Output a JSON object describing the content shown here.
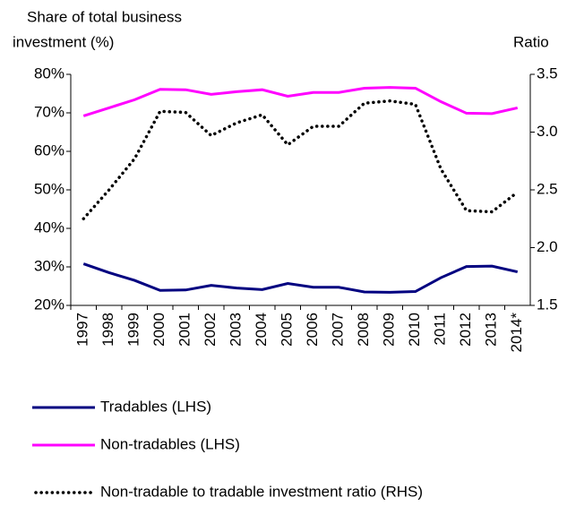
{
  "chart_data": {
    "type": "line",
    "y_label": [
      "Share of total business",
      "investment (%)"
    ],
    "y2_label": "Ratio",
    "categories": [
      "1997",
      "1998",
      "1999",
      "2000",
      "2001",
      "2002",
      "2003",
      "2004",
      "2005",
      "2006",
      "2007",
      "2008",
      "2009",
      "2010",
      "2011",
      "2012",
      "2013",
      "2014*"
    ],
    "series": [
      {
        "name": "Tradables (LHS)",
        "color": "#000080",
        "style": "solid",
        "values": [
          30.8,
          28.5,
          26.5,
          23.9,
          24.0,
          25.2,
          24.5,
          24.1,
          25.7,
          24.7,
          24.7,
          23.5,
          23.4,
          23.6,
          27.2,
          30.1,
          30.2,
          28.7
        ]
      },
      {
        "name": "Non-tradables (LHS)",
        "color": "#ff00ff",
        "style": "solid",
        "values": [
          69.2,
          71.3,
          73.4,
          76.1,
          76.0,
          74.8,
          75.5,
          76.0,
          74.3,
          75.3,
          75.3,
          76.4,
          76.6,
          76.4,
          72.9,
          69.9,
          69.8,
          71.3
        ]
      },
      {
        "name": "Non-tradable to tradable investment ratio (RHS)",
        "color": "#000000",
        "style": "dotted",
        "axis": "y2",
        "values": [
          2.25,
          2.5,
          2.77,
          3.18,
          3.17,
          2.97,
          3.08,
          3.15,
          2.89,
          3.05,
          3.05,
          3.25,
          3.27,
          3.24,
          2.68,
          2.32,
          2.31,
          2.48
        ]
      }
    ],
    "ylim": [
      20,
      80
    ],
    "yticks": [
      {
        "value": 20,
        "label": "20%"
      },
      {
        "value": 30,
        "label": "30%"
      },
      {
        "value": 40,
        "label": "40%"
      },
      {
        "value": 50,
        "label": "50%"
      },
      {
        "value": 60,
        "label": "60%"
      },
      {
        "value": 70,
        "label": "70%"
      },
      {
        "value": 80,
        "label": "80%"
      }
    ],
    "y2lim": [
      1.5,
      3.5
    ],
    "y2ticks": [
      1.5,
      {
        "value": 2,
        "label": "2.0"
      },
      2.5,
      {
        "value": 3,
        "label": "3.0"
      },
      3.5
    ],
    "grid": false
  }
}
